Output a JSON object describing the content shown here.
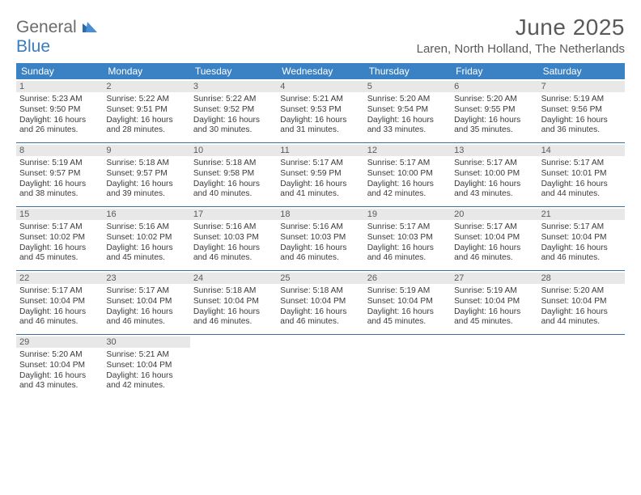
{
  "logo": {
    "general": "General",
    "blue": "Blue"
  },
  "title": "June 2025",
  "location": "Laren, North Holland, The Netherlands",
  "colors": {
    "header_bg": "#3b82c4",
    "header_text": "#ffffff",
    "daynum_bg": "#e8e8e8",
    "daynum_text": "#5a5a5a",
    "divider": "#3b6fa0",
    "title_text": "#5a5a5a",
    "body_text": "#3a3a3a",
    "logo_gray": "#6b6b6b",
    "logo_blue": "#3b7bbf"
  },
  "weekdays": [
    "Sunday",
    "Monday",
    "Tuesday",
    "Wednesday",
    "Thursday",
    "Friday",
    "Saturday"
  ],
  "weeks": [
    [
      {
        "n": "1",
        "sr": "Sunrise: 5:23 AM",
        "ss": "Sunset: 9:50 PM",
        "dl1": "Daylight: 16 hours",
        "dl2": "and 26 minutes."
      },
      {
        "n": "2",
        "sr": "Sunrise: 5:22 AM",
        "ss": "Sunset: 9:51 PM",
        "dl1": "Daylight: 16 hours",
        "dl2": "and 28 minutes."
      },
      {
        "n": "3",
        "sr": "Sunrise: 5:22 AM",
        "ss": "Sunset: 9:52 PM",
        "dl1": "Daylight: 16 hours",
        "dl2": "and 30 minutes."
      },
      {
        "n": "4",
        "sr": "Sunrise: 5:21 AM",
        "ss": "Sunset: 9:53 PM",
        "dl1": "Daylight: 16 hours",
        "dl2": "and 31 minutes."
      },
      {
        "n": "5",
        "sr": "Sunrise: 5:20 AM",
        "ss": "Sunset: 9:54 PM",
        "dl1": "Daylight: 16 hours",
        "dl2": "and 33 minutes."
      },
      {
        "n": "6",
        "sr": "Sunrise: 5:20 AM",
        "ss": "Sunset: 9:55 PM",
        "dl1": "Daylight: 16 hours",
        "dl2": "and 35 minutes."
      },
      {
        "n": "7",
        "sr": "Sunrise: 5:19 AM",
        "ss": "Sunset: 9:56 PM",
        "dl1": "Daylight: 16 hours",
        "dl2": "and 36 minutes."
      }
    ],
    [
      {
        "n": "8",
        "sr": "Sunrise: 5:19 AM",
        "ss": "Sunset: 9:57 PM",
        "dl1": "Daylight: 16 hours",
        "dl2": "and 38 minutes."
      },
      {
        "n": "9",
        "sr": "Sunrise: 5:18 AM",
        "ss": "Sunset: 9:57 PM",
        "dl1": "Daylight: 16 hours",
        "dl2": "and 39 minutes."
      },
      {
        "n": "10",
        "sr": "Sunrise: 5:18 AM",
        "ss": "Sunset: 9:58 PM",
        "dl1": "Daylight: 16 hours",
        "dl2": "and 40 minutes."
      },
      {
        "n": "11",
        "sr": "Sunrise: 5:17 AM",
        "ss": "Sunset: 9:59 PM",
        "dl1": "Daylight: 16 hours",
        "dl2": "and 41 minutes."
      },
      {
        "n": "12",
        "sr": "Sunrise: 5:17 AM",
        "ss": "Sunset: 10:00 PM",
        "dl1": "Daylight: 16 hours",
        "dl2": "and 42 minutes."
      },
      {
        "n": "13",
        "sr": "Sunrise: 5:17 AM",
        "ss": "Sunset: 10:00 PM",
        "dl1": "Daylight: 16 hours",
        "dl2": "and 43 minutes."
      },
      {
        "n": "14",
        "sr": "Sunrise: 5:17 AM",
        "ss": "Sunset: 10:01 PM",
        "dl1": "Daylight: 16 hours",
        "dl2": "and 44 minutes."
      }
    ],
    [
      {
        "n": "15",
        "sr": "Sunrise: 5:17 AM",
        "ss": "Sunset: 10:02 PM",
        "dl1": "Daylight: 16 hours",
        "dl2": "and 45 minutes."
      },
      {
        "n": "16",
        "sr": "Sunrise: 5:16 AM",
        "ss": "Sunset: 10:02 PM",
        "dl1": "Daylight: 16 hours",
        "dl2": "and 45 minutes."
      },
      {
        "n": "17",
        "sr": "Sunrise: 5:16 AM",
        "ss": "Sunset: 10:03 PM",
        "dl1": "Daylight: 16 hours",
        "dl2": "and 46 minutes."
      },
      {
        "n": "18",
        "sr": "Sunrise: 5:16 AM",
        "ss": "Sunset: 10:03 PM",
        "dl1": "Daylight: 16 hours",
        "dl2": "and 46 minutes."
      },
      {
        "n": "19",
        "sr": "Sunrise: 5:17 AM",
        "ss": "Sunset: 10:03 PM",
        "dl1": "Daylight: 16 hours",
        "dl2": "and 46 minutes."
      },
      {
        "n": "20",
        "sr": "Sunrise: 5:17 AM",
        "ss": "Sunset: 10:04 PM",
        "dl1": "Daylight: 16 hours",
        "dl2": "and 46 minutes."
      },
      {
        "n": "21",
        "sr": "Sunrise: 5:17 AM",
        "ss": "Sunset: 10:04 PM",
        "dl1": "Daylight: 16 hours",
        "dl2": "and 46 minutes."
      }
    ],
    [
      {
        "n": "22",
        "sr": "Sunrise: 5:17 AM",
        "ss": "Sunset: 10:04 PM",
        "dl1": "Daylight: 16 hours",
        "dl2": "and 46 minutes."
      },
      {
        "n": "23",
        "sr": "Sunrise: 5:17 AM",
        "ss": "Sunset: 10:04 PM",
        "dl1": "Daylight: 16 hours",
        "dl2": "and 46 minutes."
      },
      {
        "n": "24",
        "sr": "Sunrise: 5:18 AM",
        "ss": "Sunset: 10:04 PM",
        "dl1": "Daylight: 16 hours",
        "dl2": "and 46 minutes."
      },
      {
        "n": "25",
        "sr": "Sunrise: 5:18 AM",
        "ss": "Sunset: 10:04 PM",
        "dl1": "Daylight: 16 hours",
        "dl2": "and 46 minutes."
      },
      {
        "n": "26",
        "sr": "Sunrise: 5:19 AM",
        "ss": "Sunset: 10:04 PM",
        "dl1": "Daylight: 16 hours",
        "dl2": "and 45 minutes."
      },
      {
        "n": "27",
        "sr": "Sunrise: 5:19 AM",
        "ss": "Sunset: 10:04 PM",
        "dl1": "Daylight: 16 hours",
        "dl2": "and 45 minutes."
      },
      {
        "n": "28",
        "sr": "Sunrise: 5:20 AM",
        "ss": "Sunset: 10:04 PM",
        "dl1": "Daylight: 16 hours",
        "dl2": "and 44 minutes."
      }
    ],
    [
      {
        "n": "29",
        "sr": "Sunrise: 5:20 AM",
        "ss": "Sunset: 10:04 PM",
        "dl1": "Daylight: 16 hours",
        "dl2": "and 43 minutes."
      },
      {
        "n": "30",
        "sr": "Sunrise: 5:21 AM",
        "ss": "Sunset: 10:04 PM",
        "dl1": "Daylight: 16 hours",
        "dl2": "and 42 minutes."
      },
      null,
      null,
      null,
      null,
      null
    ]
  ]
}
